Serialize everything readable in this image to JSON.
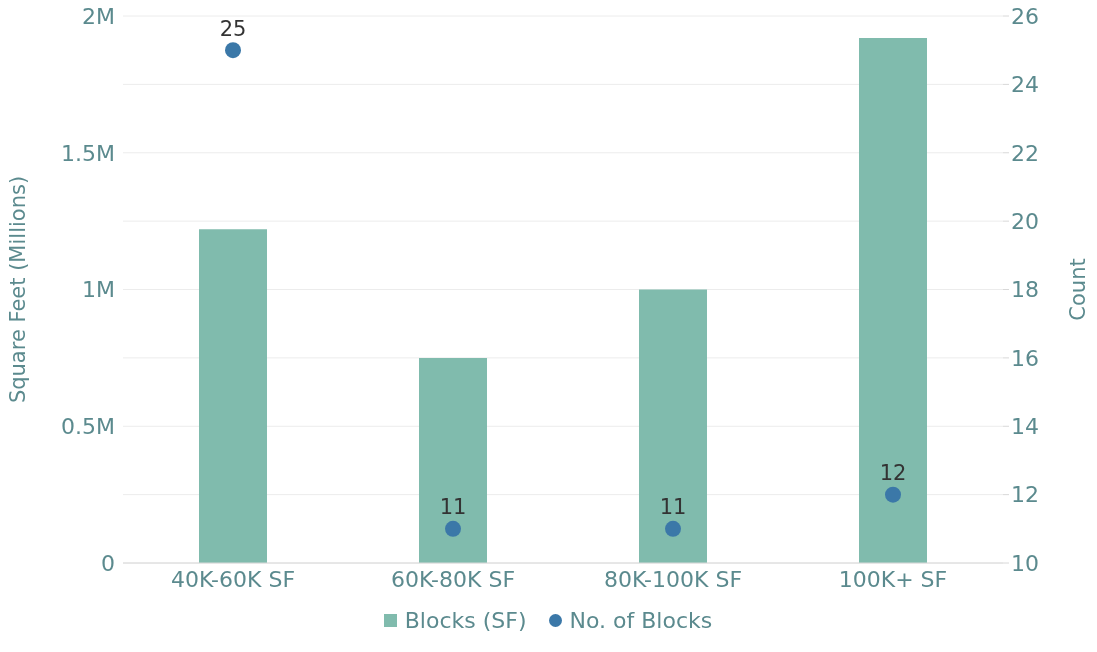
{
  "chart_data": {
    "type": "bar",
    "categories": [
      "40K-60K SF",
      "60K-80K SF",
      "80K-100K SF",
      "100K+ SF"
    ],
    "series": [
      {
        "name": "Blocks (SF)",
        "color": "#80bbad",
        "values": [
          1.22,
          0.75,
          1.0,
          1.92
        ]
      },
      {
        "name": "No. of Blocks",
        "type": "scatter",
        "color": "#3b78a8",
        "axis": "y2",
        "values": [
          25,
          11,
          11,
          12
        ],
        "data_labels": true
      }
    ],
    "ylabel": "Square Feet (Millions)",
    "y2label": "Count",
    "ylim": [
      0,
      2
    ],
    "yticks": [
      0,
      {
        "value": 0.5,
        "label": "0.5M"
      },
      {
        "value": 1,
        "label": "1M"
      },
      {
        "value": 1.5,
        "label": "1.5M"
      },
      {
        "value": 2,
        "label": "2M"
      }
    ],
    "y2lim": [
      10,
      26
    ],
    "y2ticks": [
      10,
      12,
      14,
      16,
      18,
      20,
      22,
      24,
      26
    ],
    "grid": "y",
    "legend": "bottom",
    "marker": "circle"
  }
}
